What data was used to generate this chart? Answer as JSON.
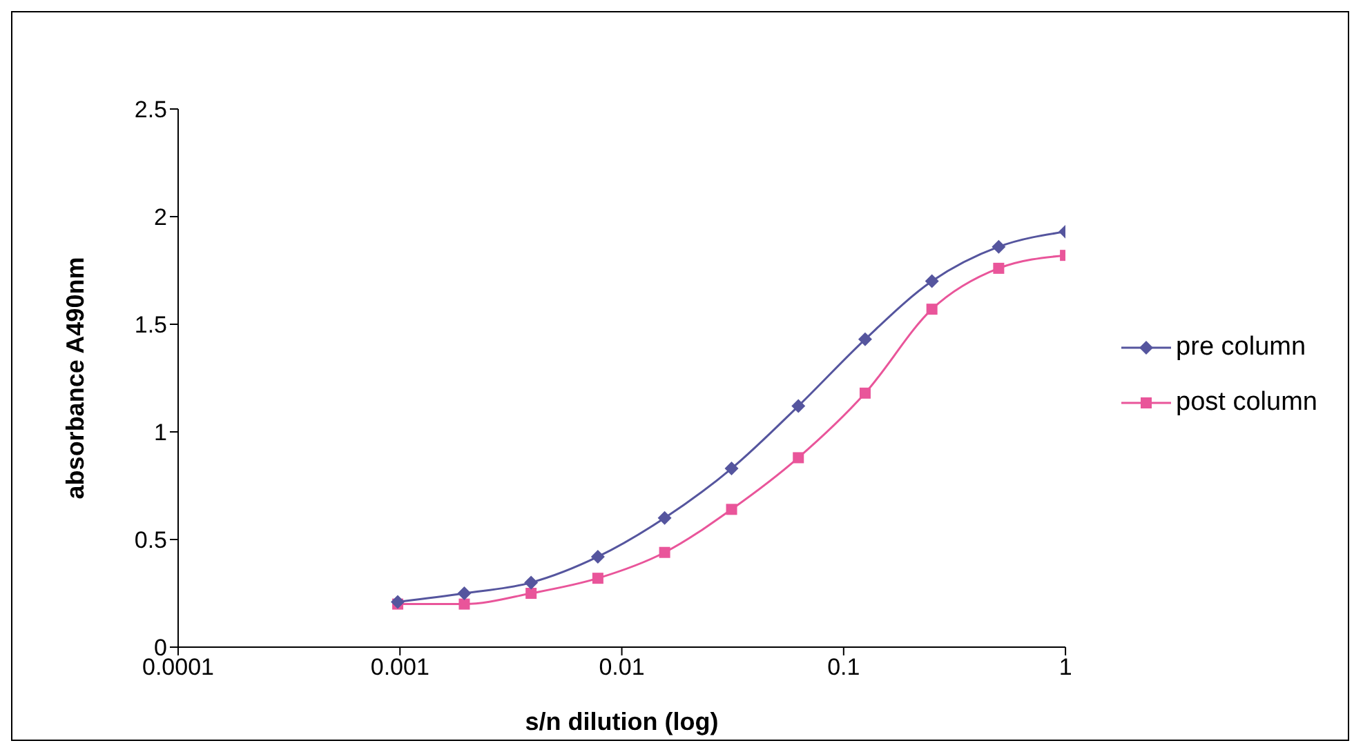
{
  "chart_data": {
    "type": "line",
    "xlabel": "s/n dilution (log)",
    "ylabel": "absorbance A490nm",
    "x": [
      0.000977,
      0.00195,
      0.0039,
      0.0078,
      0.0156,
      0.03125,
      0.0625,
      0.125,
      0.25,
      0.5,
      1
    ],
    "series": [
      {
        "name": "pre column",
        "color": "#55559e",
        "marker": "diamond",
        "values": [
          0.21,
          0.25,
          0.3,
          0.42,
          0.6,
          0.83,
          1.12,
          1.43,
          1.7,
          1.86,
          1.93
        ]
      },
      {
        "name": "post column",
        "color": "#e9559a",
        "marker": "square",
        "values": [
          0.2,
          0.2,
          0.25,
          0.32,
          0.44,
          0.64,
          0.88,
          1.18,
          1.57,
          1.76,
          1.82
        ]
      }
    ],
    "log": "x",
    "xlim": [
      0.0001,
      1
    ],
    "xticks": [
      0.0001,
      0.001,
      0.01,
      0.1,
      1
    ],
    "ylim": [
      0,
      2.5
    ],
    "yticks": [
      0,
      0.5,
      1,
      1.5,
      2,
      2.5
    ],
    "grid": false,
    "legend": "right",
    "line_style": "solid"
  }
}
